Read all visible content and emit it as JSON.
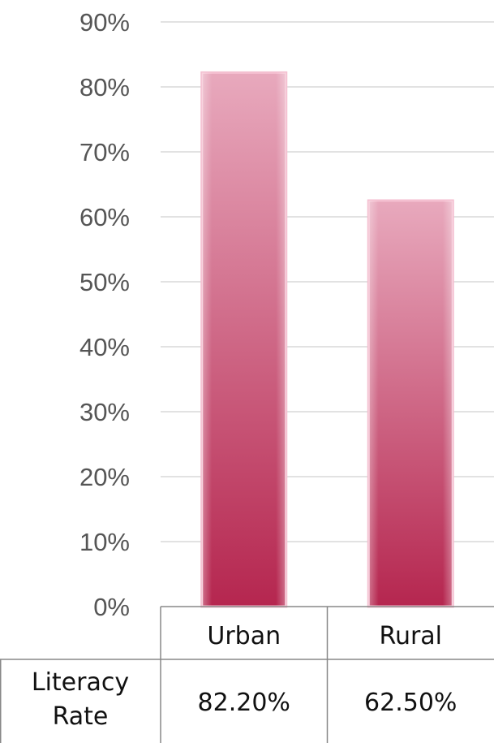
{
  "chart_data": {
    "type": "bar",
    "categories": [
      "Urban",
      "Rural"
    ],
    "values": [
      82.2,
      62.5
    ],
    "ylim": [
      0,
      90
    ],
    "yticks": [
      "0%",
      "10%",
      "20%",
      "30%",
      "40%",
      "50%",
      "60%",
      "70%",
      "80%",
      "90%"
    ],
    "grid": true,
    "data_table": {
      "row_label_lines": [
        "Literacy",
        "Rate"
      ],
      "cells": [
        "82.20%",
        "62.50%"
      ]
    },
    "colors": {
      "bar_top": "#e8a9bd",
      "bar_bottom": "#b5264f",
      "bar_edge": "#f4bfd0",
      "grid": "#d9d9d9",
      "axis": "#888888"
    }
  }
}
